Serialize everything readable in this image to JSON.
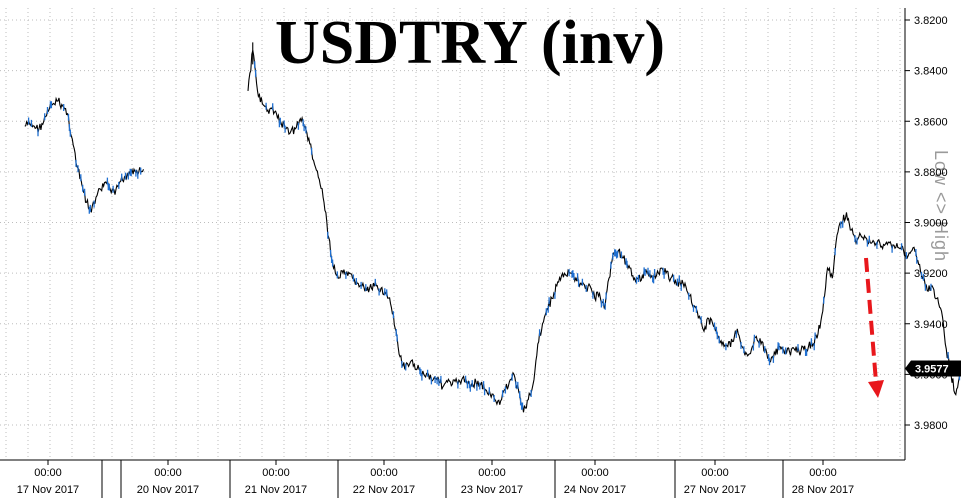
{
  "chart_data": {
    "type": "line",
    "title": "USDTRY (inv)",
    "y_axis_label": "Low <> High",
    "inverted_y": true,
    "ylim": [
      3.82,
      3.988
    ],
    "y_ticks": [
      "3.8200",
      "3.8400",
      "3.8600",
      "3.8800",
      "3.9000",
      "3.9200",
      "3.9400",
      "3.9600",
      "3.9800"
    ],
    "y_tick_values": [
      3.82,
      3.84,
      3.86,
      3.88,
      3.9,
      3.92,
      3.94,
      3.96,
      3.98
    ],
    "last_value": "3.9577",
    "grid": true,
    "x_time_ticks": [
      "00:00",
      "00:00",
      "00:00",
      "00:00",
      "00:00",
      "00:00",
      "00:00",
      "00:00"
    ],
    "x_date_ticks": [
      "17 Nov 2017",
      "20 Nov 2017",
      "21 Nov 2017",
      "22 Nov 2017",
      "23 Nov 2017",
      "24 Nov 2017",
      "27 Nov 2017",
      "28 Nov 2017"
    ],
    "annotation": "red dashed down arrow indicating lira weakness",
    "series": [
      {
        "x_unit": "hours since 16 Nov 2017 00:00",
        "points": [
          [
            11,
            3.862
          ],
          [
            12,
            3.861
          ],
          [
            13,
            3.862
          ],
          [
            14,
            3.863
          ],
          [
            15,
            3.86
          ],
          [
            16,
            3.856
          ],
          [
            17,
            3.853
          ],
          [
            18,
            3.852
          ],
          [
            19,
            3.854
          ],
          [
            20,
            3.857
          ],
          [
            21,
            3.867
          ],
          [
            22,
            3.878
          ],
          [
            23,
            3.885
          ],
          [
            24,
            3.892
          ],
          [
            25,
            3.896
          ],
          [
            26,
            3.89
          ],
          [
            27,
            3.887
          ],
          [
            28,
            3.884
          ],
          [
            29,
            3.887
          ],
          [
            30,
            3.889
          ],
          [
            31,
            3.884
          ],
          [
            32,
            3.882
          ],
          [
            33,
            3.88
          ],
          [
            34,
            3.879
          ],
          [
            35,
            3.88
          ],
          [
            36,
            3.879
          ],
          [
            58,
            3.848
          ],
          [
            59,
            3.832
          ],
          [
            60,
            3.848
          ],
          [
            61,
            3.853
          ],
          [
            62,
            3.856
          ],
          [
            63,
            3.855
          ],
          [
            64,
            3.857
          ],
          [
            65,
            3.861
          ],
          [
            66,
            3.863
          ],
          [
            67,
            3.864
          ],
          [
            68,
            3.863
          ],
          [
            69,
            3.859
          ],
          [
            70,
            3.862
          ],
          [
            71,
            3.869
          ],
          [
            72,
            3.877
          ],
          [
            73,
            3.883
          ],
          [
            74,
            3.892
          ],
          [
            75,
            3.906
          ],
          [
            76,
            3.918
          ],
          [
            77,
            3.922
          ],
          [
            78,
            3.92
          ],
          [
            79,
            3.921
          ],
          [
            80,
            3.922
          ],
          [
            81,
            3.924
          ],
          [
            82,
            3.925
          ],
          [
            83,
            3.927
          ],
          [
            84,
            3.926
          ],
          [
            85,
            3.925
          ],
          [
            86,
            3.926
          ],
          [
            87,
            3.928
          ],
          [
            88,
            3.932
          ],
          [
            89,
            3.942
          ],
          [
            90,
            3.953
          ],
          [
            91,
            3.958
          ],
          [
            92,
            3.956
          ],
          [
            93,
            3.956
          ],
          [
            94,
            3.958
          ],
          [
            95,
            3.96
          ],
          [
            96,
            3.96
          ],
          [
            97,
            3.962
          ],
          [
            98,
            3.961
          ],
          [
            99,
            3.965
          ],
          [
            100,
            3.963
          ],
          [
            101,
            3.964
          ],
          [
            102,
            3.963
          ],
          [
            103,
            3.962
          ],
          [
            104,
            3.963
          ],
          [
            105,
            3.964
          ],
          [
            106,
            3.963
          ],
          [
            107,
            3.964
          ],
          [
            108,
            3.966
          ],
          [
            109,
            3.968
          ],
          [
            110,
            3.97
          ],
          [
            111,
            3.972
          ],
          [
            112,
            3.966
          ],
          [
            113,
            3.963
          ],
          [
            114,
            3.96
          ],
          [
            115,
            3.967
          ],
          [
            116,
            3.975
          ],
          [
            117,
            3.97
          ],
          [
            118,
            3.964
          ],
          [
            119,
            3.948
          ],
          [
            120,
            3.94
          ],
          [
            121,
            3.934
          ],
          [
            122,
            3.93
          ],
          [
            123,
            3.925
          ],
          [
            124,
            3.921
          ],
          [
            125,
            3.921
          ],
          [
            126,
            3.92
          ],
          [
            127,
            3.922
          ],
          [
            128,
            3.924
          ],
          [
            129,
            3.926
          ],
          [
            130,
            3.925
          ],
          [
            131,
            3.93
          ],
          [
            132,
            3.928
          ],
          [
            133,
            3.934
          ],
          [
            134,
            3.922
          ],
          [
            135,
            3.912
          ],
          [
            136,
            3.911
          ],
          [
            137,
            3.914
          ],
          [
            138,
            3.918
          ],
          [
            139,
            3.921
          ],
          [
            140,
            3.922
          ],
          [
            141,
            3.921
          ],
          [
            142,
            3.92
          ],
          [
            143,
            3.921
          ],
          [
            144,
            3.921
          ],
          [
            145,
            3.918
          ],
          [
            146,
            3.92
          ],
          [
            147,
            3.922
          ],
          [
            148,
            3.923
          ],
          [
            149,
            3.924
          ],
          [
            150,
            3.924
          ],
          [
            151,
            3.929
          ],
          [
            152,
            3.933
          ],
          [
            153,
            3.937
          ],
          [
            154,
            3.943
          ],
          [
            155,
            3.938
          ],
          [
            156,
            3.941
          ],
          [
            157,
            3.945
          ],
          [
            158,
            3.947
          ],
          [
            159,
            3.949
          ],
          [
            160,
            3.947
          ],
          [
            161,
            3.942
          ],
          [
            162,
            3.949
          ],
          [
            163,
            3.952
          ],
          [
            164,
            3.95
          ],
          [
            165,
            3.945
          ],
          [
            166,
            3.948
          ],
          [
            167,
            3.95
          ],
          [
            168,
            3.955
          ],
          [
            169,
            3.952
          ],
          [
            170,
            3.949
          ],
          [
            171,
            3.952
          ],
          [
            172,
            3.951
          ],
          [
            173,
            3.95
          ],
          [
            174,
            3.951
          ],
          [
            175,
            3.95
          ],
          [
            176,
            3.949
          ],
          [
            177,
            3.948
          ],
          [
            178,
            3.944
          ],
          [
            179,
            3.935
          ],
          [
            180,
            3.918
          ],
          [
            181,
            3.922
          ],
          [
            182,
            3.905
          ],
          [
            183,
            3.9
          ],
          [
            184,
            3.896
          ],
          [
            185,
            3.903
          ],
          [
            186,
            3.908
          ],
          [
            187,
            3.905
          ],
          [
            188,
            3.906
          ],
          [
            189,
            3.908
          ],
          [
            190,
            3.909
          ],
          [
            191,
            3.908
          ],
          [
            192,
            3.909
          ],
          [
            193,
            3.908
          ],
          [
            194,
            3.909
          ],
          [
            195,
            3.91
          ],
          [
            196,
            3.911
          ],
          [
            197,
            3.913
          ],
          [
            198,
            3.91
          ],
          [
            199,
            3.915
          ],
          [
            200,
            3.922
          ],
          [
            201,
            3.927
          ],
          [
            202,
            3.925
          ],
          [
            203,
            3.93
          ],
          [
            204,
            3.935
          ],
          [
            205,
            3.95
          ],
          [
            206,
            3.96
          ],
          [
            207,
            3.968
          ],
          [
            208,
            3.957
          ]
        ]
      }
    ]
  }
}
